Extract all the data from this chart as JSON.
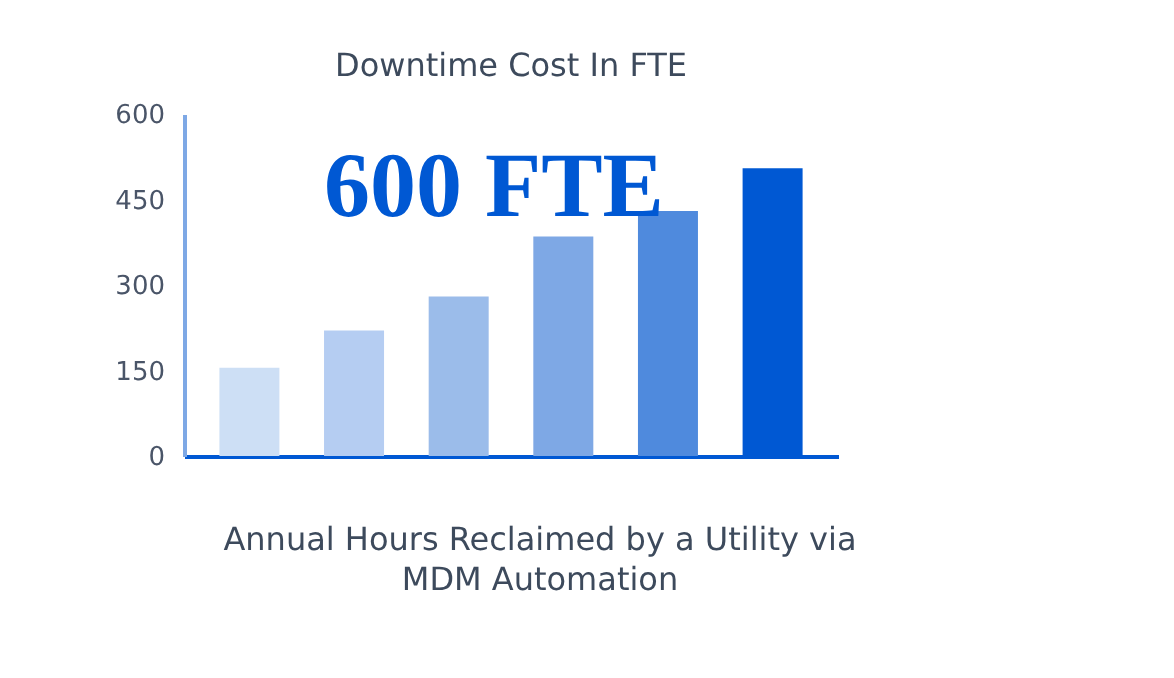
{
  "chart_data": {
    "type": "bar",
    "title": "Downtime Cost In FTE",
    "categories": [
      null,
      null,
      null,
      null,
      null,
      null
    ],
    "values": [
      155,
      220,
      280,
      385,
      430,
      505
    ],
    "colors": [
      "#cddff5",
      "#b5cdf2",
      "#9bbcea",
      "#7ea8e5",
      "#4f8add",
      "#0058d3"
    ],
    "ylim": [
      0,
      600
    ],
    "yticks": [
      0,
      150,
      300,
      450,
      600
    ],
    "grid": false,
    "tick_labels": "y",
    "annotations": [
      "600 FTE",
      "Annual Hours Reclaimed by a Utility via MDM Automation"
    ]
  }
}
